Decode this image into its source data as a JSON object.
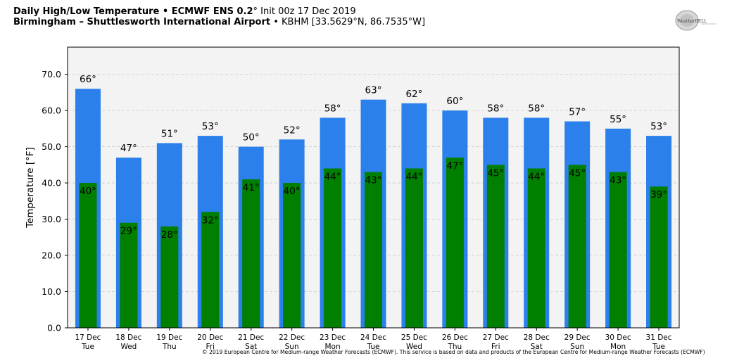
{
  "header": {
    "line1_bold": "Daily High/Low Temperature • ECMWF ENS 0.2",
    "line1_deg": "°",
    "line1_rest": " Init 00z 17 Dec 2019",
    "line2_bold": "Birmingham – Shuttlesworth International Airport",
    "line2_rest": " • KBHM [33.5629°N, 86.7535°W]"
  },
  "logo": {
    "text": "WeatherBELL"
  },
  "footer": "© 2019 European Centre for Medium-range Weather Forecasts (ECMWF). This service is based on data and products of the European Centre for Medium-range Weather Forecasts (ECMWF)",
  "colors": {
    "high": "#2b80eb",
    "low": "#007f00",
    "plot_bg": "#f3f3f3",
    "grid": "#cccccc"
  },
  "chart_data": {
    "type": "bar",
    "ylabel": "Temperature [°F]",
    "ylim": [
      0,
      77.5
    ],
    "yticks": [
      "0.0",
      "10.0",
      "20.0",
      "30.0",
      "40.0",
      "50.0",
      "60.0",
      "70.0"
    ],
    "grid": true,
    "categories": [
      [
        "17 Dec",
        "Tue"
      ],
      [
        "18 Dec",
        "Wed"
      ],
      [
        "19 Dec",
        "Thu"
      ],
      [
        "20 Dec",
        "Fri"
      ],
      [
        "21 Dec",
        "Sat"
      ],
      [
        "22 Dec",
        "Sun"
      ],
      [
        "23 Dec",
        "Mon"
      ],
      [
        "24 Dec",
        "Tue"
      ],
      [
        "25 Dec",
        "Wed"
      ],
      [
        "26 Dec",
        "Thu"
      ],
      [
        "27 Dec",
        "Fri"
      ],
      [
        "28 Dec",
        "Sat"
      ],
      [
        "29 Dec",
        "Sun"
      ],
      [
        "30 Dec",
        "Mon"
      ],
      [
        "31 Dec",
        "Tue"
      ]
    ],
    "series": [
      {
        "key": "high",
        "values": [
          66,
          47,
          51,
          53,
          50,
          52,
          58,
          63,
          62,
          60,
          58,
          58,
          57,
          55,
          53
        ]
      },
      {
        "key": "low",
        "values": [
          40,
          29,
          28,
          32,
          41,
          40,
          44,
          43,
          44,
          47,
          45,
          44,
          45,
          43,
          39
        ]
      }
    ],
    "label_suffix": "°"
  }
}
